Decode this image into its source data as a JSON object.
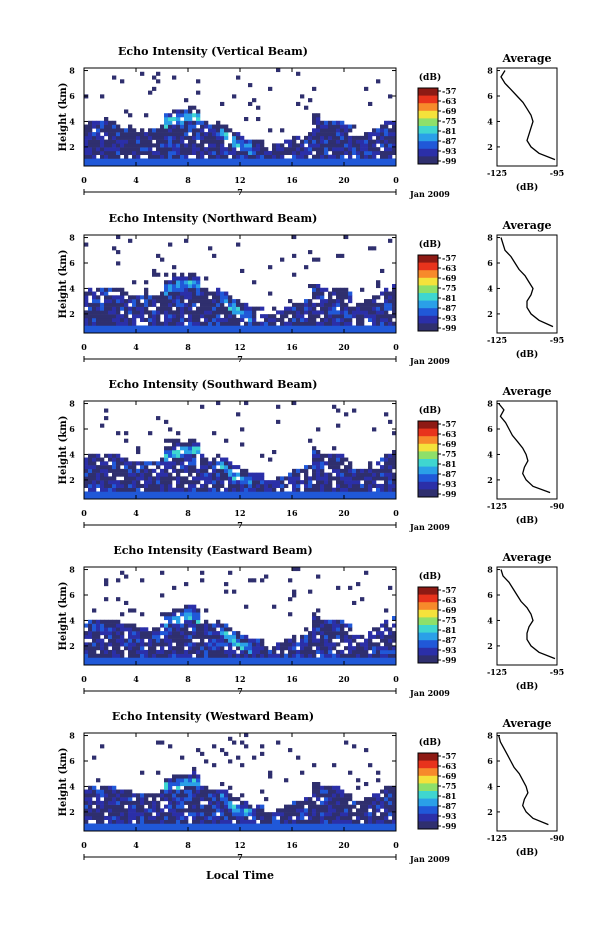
{
  "figure": {
    "x_label": "Local Time",
    "date_label": "Jan 2009",
    "date_tick": "7"
  },
  "panel_text": {
    "y_label": "Height (km)",
    "colorbar_unit": "(dB)",
    "avg_title": "Average",
    "avg_unit": "(dB)"
  },
  "colorbar": {
    "labels": [
      "-57",
      "-63",
      "-69",
      "-75",
      "-81",
      "-87",
      "-93",
      "-99"
    ],
    "colors": [
      "#8e1a14",
      "#e8331c",
      "#f78a2b",
      "#f4e23b",
      "#8ee06a",
      "#3fd6d0",
      "#2aa0e8",
      "#2058d8",
      "#2b2fa8",
      "#2f2f6e"
    ]
  },
  "chart_data": [
    {
      "type": "heatmap",
      "title": "Echo Intensity (Vertical Beam)",
      "ylabel": "Height (km)",
      "xlabel": "Local Time",
      "x_ticks": [
        "0",
        "4",
        "8",
        "12",
        "16",
        "20",
        "0"
      ],
      "y_ticks": [
        "2",
        "4",
        "6",
        "8"
      ],
      "xlim": [
        0,
        24
      ],
      "ylim": [
        0.5,
        8.2
      ],
      "profile": {
        "title": "Average",
        "xlabel": "(dB)",
        "x_ticks": [
          "-125",
          "-95"
        ],
        "xlim": [
          -125,
          -95
        ],
        "height_km": [
          8.0,
          7.5,
          7.0,
          6.5,
          6.0,
          5.5,
          5.0,
          4.5,
          4.0,
          3.5,
          3.0,
          2.5,
          2.0,
          1.5,
          1.0
        ],
        "db": [
          -121,
          -123,
          -121,
          -118,
          -115,
          -112,
          -110,
          -108,
          -107,
          -108,
          -109,
          -110,
          -108,
          -104,
          -96
        ]
      }
    },
    {
      "type": "heatmap",
      "title": "Echo Intensity (Northward Beam)",
      "ylabel": "Height (km)",
      "xlabel": "Local Time",
      "x_ticks": [
        "0",
        "4",
        "8",
        "12",
        "16",
        "20",
        "0"
      ],
      "y_ticks": [
        "2",
        "4",
        "6",
        "8"
      ],
      "xlim": [
        0,
        24
      ],
      "ylim": [
        0.5,
        8.2
      ],
      "profile": {
        "title": "Average",
        "xlabel": "(dB)",
        "x_ticks": [
          "-125",
          "-95"
        ],
        "xlim": [
          -125,
          -95
        ],
        "height_km": [
          8.0,
          7.5,
          7.0,
          6.5,
          6.0,
          5.5,
          5.0,
          4.5,
          4.0,
          3.5,
          3.0,
          2.5,
          2.0,
          1.5,
          1.0
        ],
        "db": [
          -123,
          -122,
          -121,
          -118,
          -116,
          -114,
          -111,
          -109,
          -107,
          -108,
          -110,
          -110,
          -108,
          -104,
          -97
        ]
      }
    },
    {
      "type": "heatmap",
      "title": "Echo Intensity (Southward Beam)",
      "ylabel": "Height (km)",
      "xlabel": "Local Time",
      "x_ticks": [
        "0",
        "4",
        "8",
        "12",
        "16",
        "20",
        "0"
      ],
      "y_ticks": [
        "2",
        "4",
        "6",
        "8"
      ],
      "xlim": [
        0,
        24
      ],
      "ylim": [
        0.5,
        8.2
      ],
      "profile": {
        "title": "Average",
        "xlabel": "(dB)",
        "x_ticks": [
          "-125",
          "-90"
        ],
        "xlim": [
          -125,
          -90
        ],
        "height_km": [
          8.0,
          7.5,
          7.0,
          6.5,
          6.0,
          5.5,
          5.0,
          4.5,
          4.0,
          3.5,
          3.0,
          2.5,
          2.0,
          1.5,
          1.0
        ],
        "db": [
          -124,
          -121,
          -123,
          -120,
          -118,
          -116,
          -113,
          -110,
          -108,
          -107,
          -109,
          -110,
          -108,
          -104,
          -94
        ]
      }
    },
    {
      "type": "heatmap",
      "title": "Echo Intensity (Eastward Beam)",
      "ylabel": "Height (km)",
      "xlabel": "Local Time",
      "x_ticks": [
        "0",
        "4",
        "8",
        "12",
        "16",
        "20",
        "0"
      ],
      "y_ticks": [
        "2",
        "4",
        "6",
        "8"
      ],
      "xlim": [
        0,
        24
      ],
      "ylim": [
        0.5,
        8.2
      ],
      "profile": {
        "title": "Average",
        "xlabel": "(dB)",
        "x_ticks": [
          "-125",
          "-95"
        ],
        "xlim": [
          -125,
          -95
        ],
        "height_km": [
          8.0,
          7.5,
          7.0,
          6.5,
          6.0,
          5.5,
          5.0,
          4.5,
          4.0,
          3.5,
          3.0,
          2.5,
          2.0,
          1.5,
          1.0
        ],
        "db": [
          -123,
          -122,
          -119,
          -117,
          -115,
          -113,
          -110,
          -108,
          -107,
          -109,
          -110,
          -110,
          -108,
          -104,
          -96
        ]
      }
    },
    {
      "type": "heatmap",
      "title": "Echo Intensity (Westward Beam)",
      "ylabel": "Height (km)",
      "xlabel": "Local Time",
      "x_ticks": [
        "0",
        "4",
        "8",
        "12",
        "16",
        "20",
        "0"
      ],
      "y_ticks": [
        "2",
        "4",
        "6",
        "8"
      ],
      "xlim": [
        0,
        24
      ],
      "ylim": [
        0.5,
        8.2
      ],
      "profile": {
        "title": "Average",
        "xlabel": "(dB)",
        "x_ticks": [
          "-125",
          "-90"
        ],
        "xlim": [
          -125,
          -90
        ],
        "height_km": [
          8.0,
          7.5,
          7.0,
          6.5,
          6.0,
          5.5,
          5.0,
          4.5,
          4.0,
          3.5,
          3.0,
          2.5,
          2.0,
          1.5,
          1.0
        ],
        "db": [
          -124,
          -123,
          -121,
          -119,
          -117,
          -115,
          -112,
          -110,
          -108,
          -107,
          -109,
          -110,
          -108,
          -104,
          -95
        ]
      }
    }
  ]
}
